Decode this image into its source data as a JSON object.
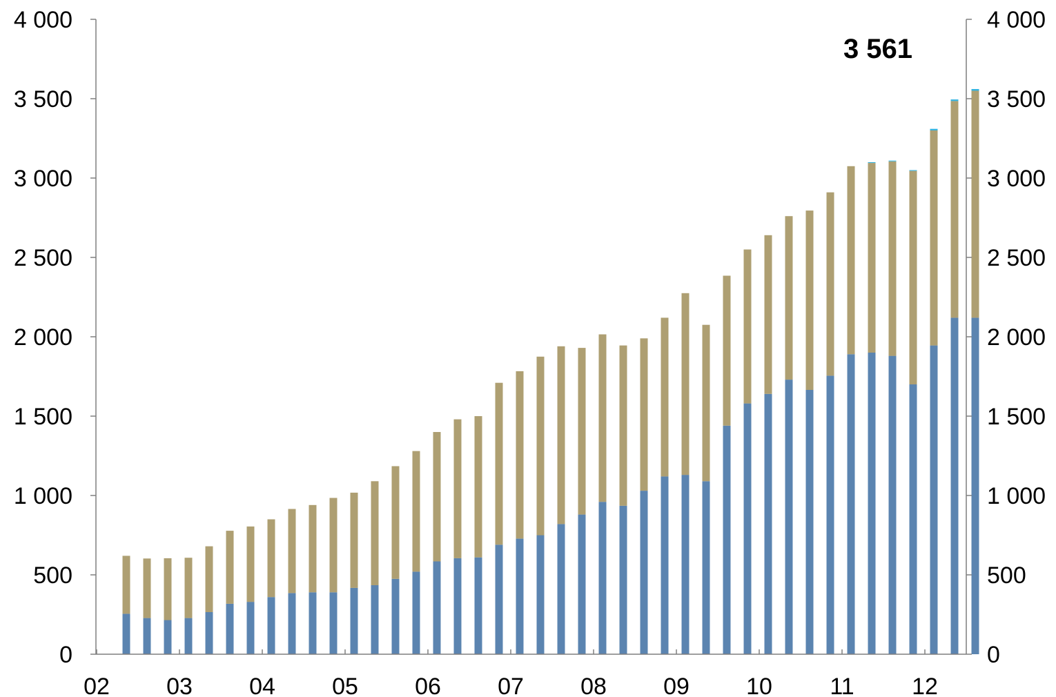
{
  "chart_data": {
    "type": "bar",
    "stacked": true,
    "x_tick_labels": [
      "02",
      "03",
      "04",
      "05",
      "06",
      "07",
      "08",
      "09",
      "10",
      "11",
      "12"
    ],
    "y_tick_labels": [
      "0",
      "500",
      "1 000",
      "1 500",
      "2 000",
      "2 500",
      "3 000",
      "3 500",
      "4 000"
    ],
    "ylim": [
      0,
      4000
    ],
    "y_ticks": [
      0,
      500,
      1000,
      1500,
      2000,
      2500,
      3000,
      3500,
      4000
    ],
    "dual_y_axis": true,
    "grid": false,
    "annotation": "3 561",
    "bars_per_year": 4,
    "first_year_quarter": 2,
    "colors": {
      "bottom": "#5b84b0",
      "middle": "#ae9f72",
      "top": "#35b4e0",
      "axis": "#7f7f7f"
    },
    "series": [
      {
        "color": "#5b84b0",
        "values": [
          255,
          228,
          215,
          228,
          265,
          318,
          330,
          360,
          385,
          390,
          390,
          418,
          435,
          475,
          520,
          585,
          605,
          610,
          690,
          728,
          750,
          820,
          880,
          960,
          935,
          1030,
          1120,
          1130,
          1090,
          1440,
          1580,
          1640,
          1730,
          1665,
          1755,
          1890,
          1900,
          1880,
          1700,
          1945,
          2120,
          2120
        ]
      },
      {
        "color": "#ae9f72",
        "values": [
          365,
          375,
          390,
          380,
          415,
          460,
          475,
          490,
          530,
          550,
          595,
          600,
          655,
          710,
          760,
          815,
          875,
          890,
          1020,
          1055,
          1125,
          1120,
          1050,
          1055,
          1010,
          960,
          1000,
          1145,
          985,
          945,
          970,
          1000,
          1030,
          1130,
          1155,
          1185,
          1195,
          1225,
          1345,
          1355,
          1365,
          1430
        ]
      },
      {
        "color": "#35b4e0",
        "values": [
          0,
          0,
          0,
          0,
          0,
          0,
          0,
          0,
          0,
          0,
          0,
          0,
          0,
          0,
          0,
          0,
          0,
          0,
          0,
          0,
          0,
          0,
          0,
          0,
          0,
          0,
          0,
          0,
          0,
          0,
          0,
          0,
          0,
          0,
          0,
          0,
          5,
          5,
          5,
          10,
          10,
          11
        ]
      }
    ]
  }
}
